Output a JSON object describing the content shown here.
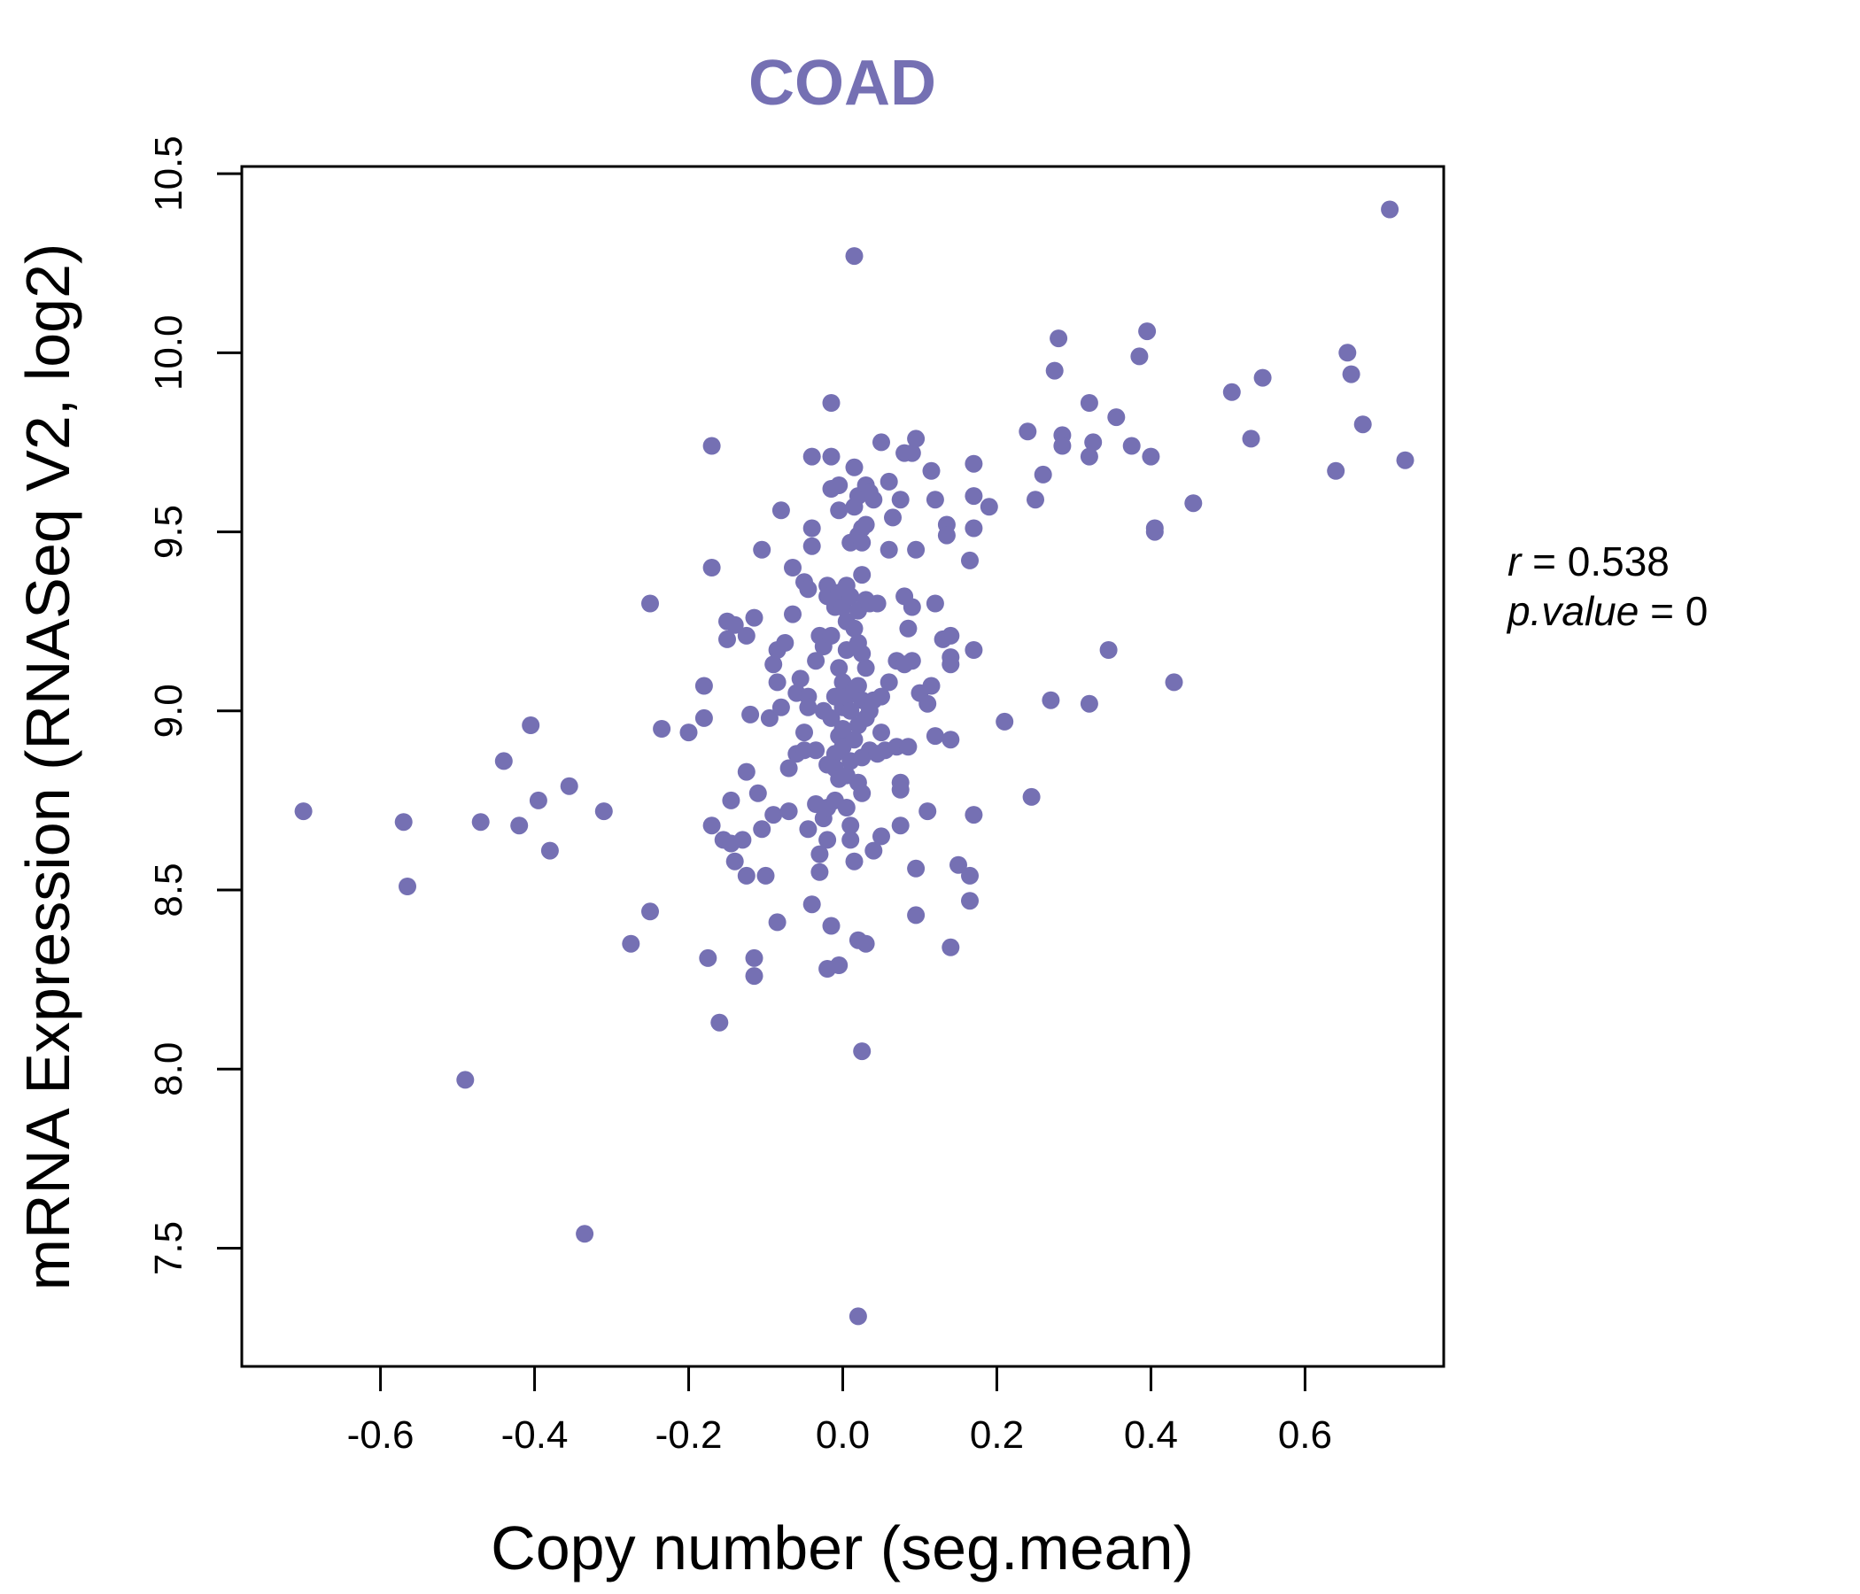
{
  "chart_data": {
    "type": "scatter",
    "title": "COAD",
    "xlabel": "Copy number (seg.mean)",
    "ylabel": "mRNA Expression (RNASeq V2, log2)",
    "xlim": [
      -0.78,
      0.78
    ],
    "ylim": [
      7.17,
      10.52
    ],
    "xticks": [
      -0.6,
      -0.4,
      -0.2,
      0.0,
      0.2,
      0.4,
      0.6
    ],
    "xtick_labels": [
      "-0.6",
      "-0.4",
      "-0.2",
      "0.0",
      "0.2",
      "0.4",
      "0.6"
    ],
    "yticks": [
      7.5,
      8.0,
      8.5,
      9.0,
      9.5,
      10.0,
      10.5
    ],
    "ytick_labels": [
      "7.5",
      "8.0",
      "8.5",
      "9.0",
      "9.5",
      "10.0",
      "10.5"
    ],
    "grid": false,
    "point_color": "#7570B3",
    "title_color": "#7570B3",
    "annotation": {
      "r_symbol": "r",
      "r_value": "0.538",
      "p_symbol": "p.value",
      "p_value": "0"
    },
    "points": [
      [
        -0.7,
        8.72
      ],
      [
        -0.57,
        8.69
      ],
      [
        -0.565,
        8.51
      ],
      [
        -0.49,
        7.97
      ],
      [
        -0.47,
        8.69
      ],
      [
        -0.44,
        8.86
      ],
      [
        -0.42,
        8.68
      ],
      [
        -0.405,
        8.96
      ],
      [
        -0.395,
        8.75
      ],
      [
        -0.38,
        8.61
      ],
      [
        -0.355,
        8.79
      ],
      [
        -0.335,
        7.54
      ],
      [
        -0.31,
        8.72
      ],
      [
        -0.275,
        8.35
      ],
      [
        -0.25,
        9.3
      ],
      [
        -0.25,
        8.44
      ],
      [
        -0.235,
        8.95
      ],
      [
        -0.2,
        8.94
      ],
      [
        -0.18,
        9.07
      ],
      [
        -0.18,
        8.98
      ],
      [
        -0.175,
        8.31
      ],
      [
        -0.17,
        9.74
      ],
      [
        -0.17,
        9.4
      ],
      [
        -0.17,
        8.68
      ],
      [
        -0.16,
        8.13
      ],
      [
        -0.155,
        8.64
      ],
      [
        -0.15,
        9.25
      ],
      [
        -0.15,
        9.2
      ],
      [
        -0.145,
        8.75
      ],
      [
        -0.145,
        8.63
      ],
      [
        -0.14,
        8.58
      ],
      [
        -0.14,
        9.24
      ],
      [
        -0.13,
        8.64
      ],
      [
        -0.125,
        9.21
      ],
      [
        -0.125,
        8.54
      ],
      [
        -0.125,
        8.83
      ],
      [
        -0.12,
        8.99
      ],
      [
        -0.115,
        9.26
      ],
      [
        -0.115,
        8.31
      ],
      [
        -0.115,
        8.26
      ],
      [
        -0.11,
        8.77
      ],
      [
        -0.105,
        9.45
      ],
      [
        -0.105,
        8.67
      ],
      [
        -0.1,
        8.54
      ],
      [
        -0.095,
        8.98
      ],
      [
        -0.09,
        9.13
      ],
      [
        -0.09,
        8.71
      ],
      [
        -0.085,
        9.08
      ],
      [
        -0.085,
        8.41
      ],
      [
        -0.085,
        9.17
      ],
      [
        -0.08,
        9.56
      ],
      [
        -0.08,
        9.01
      ],
      [
        -0.075,
        9.19
      ],
      [
        -0.07,
        8.72
      ],
      [
        -0.07,
        8.84
      ],
      [
        -0.065,
        9.27
      ],
      [
        -0.065,
        9.4
      ],
      [
        -0.06,
        9.05
      ],
      [
        -0.06,
        8.88
      ],
      [
        -0.055,
        9.09
      ],
      [
        -0.05,
        9.36
      ],
      [
        -0.05,
        8.94
      ],
      [
        -0.05,
        8.89
      ],
      [
        -0.045,
        9.04
      ],
      [
        -0.045,
        9.01
      ],
      [
        -0.045,
        9.34
      ],
      [
        -0.045,
        8.67
      ],
      [
        -0.04,
        9.51
      ],
      [
        -0.04,
        9.71
      ],
      [
        -0.04,
        8.46
      ],
      [
        -0.04,
        9.46
      ],
      [
        -0.035,
        8.89
      ],
      [
        -0.035,
        8.74
      ],
      [
        -0.035,
        9.14
      ],
      [
        -0.03,
        9.21
      ],
      [
        -0.03,
        8.6
      ],
      [
        -0.03,
        8.55
      ],
      [
        -0.025,
        9.0
      ],
      [
        -0.025,
        8.7
      ],
      [
        -0.025,
        9.18
      ],
      [
        -0.02,
        8.28
      ],
      [
        -0.02,
        8.73
      ],
      [
        -0.02,
        9.35
      ],
      [
        -0.02,
        9.32
      ],
      [
        -0.02,
        8.85
      ],
      [
        -0.02,
        8.64
      ],
      [
        -0.015,
        9.71
      ],
      [
        -0.015,
        9.62
      ],
      [
        -0.015,
        9.86
      ],
      [
        -0.015,
        8.4
      ],
      [
        -0.015,
        9.21
      ],
      [
        -0.015,
        8.98
      ],
      [
        -0.01,
        9.29
      ],
      [
        -0.01,
        9.04
      ],
      [
        -0.01,
        8.75
      ],
      [
        -0.01,
        8.88
      ],
      [
        -0.01,
        8.84
      ],
      [
        -0.005,
        9.63
      ],
      [
        -0.005,
        9.56
      ],
      [
        -0.005,
        9.33
      ],
      [
        -0.005,
        8.29
      ],
      [
        -0.005,
        9.12
      ],
      [
        -0.005,
        8.93
      ],
      [
        -0.005,
        8.81
      ],
      [
        0.0,
        9.29
      ],
      [
        0.0,
        9.08
      ],
      [
        0.0,
        9.01
      ],
      [
        0.0,
        8.95
      ],
      [
        0.0,
        8.9
      ],
      [
        0.005,
        9.35
      ],
      [
        0.005,
        9.25
      ],
      [
        0.005,
        9.17
      ],
      [
        0.005,
        9.04
      ],
      [
        0.005,
        8.82
      ],
      [
        0.005,
        8.73
      ],
      [
        0.01,
        9.47
      ],
      [
        0.01,
        9.32
      ],
      [
        0.01,
        9.0
      ],
      [
        0.01,
        8.86
      ],
      [
        0.01,
        8.64
      ],
      [
        0.01,
        8.68
      ],
      [
        0.015,
        9.68
      ],
      [
        0.015,
        9.57
      ],
      [
        0.015,
        9.23
      ],
      [
        0.015,
        9.06
      ],
      [
        0.015,
        8.92
      ],
      [
        0.015,
        8.58
      ],
      [
        0.015,
        10.27
      ],
      [
        0.02,
        9.6
      ],
      [
        0.02,
        9.49
      ],
      [
        0.02,
        9.28
      ],
      [
        0.02,
        9.19
      ],
      [
        0.02,
        9.07
      ],
      [
        0.02,
        8.96
      ],
      [
        0.02,
        8.8
      ],
      [
        0.02,
        8.36
      ],
      [
        0.02,
        7.31
      ],
      [
        0.025,
        9.51
      ],
      [
        0.025,
        9.47
      ],
      [
        0.025,
        9.38
      ],
      [
        0.025,
        9.16
      ],
      [
        0.025,
        9.03
      ],
      [
        0.025,
        8.87
      ],
      [
        0.025,
        8.77
      ],
      [
        0.025,
        8.05
      ],
      [
        0.03,
        9.63
      ],
      [
        0.03,
        9.52
      ],
      [
        0.03,
        9.31
      ],
      [
        0.03,
        9.12
      ],
      [
        0.03,
        8.98
      ],
      [
        0.03,
        8.35
      ],
      [
        0.035,
        9.61
      ],
      [
        0.035,
        9.3
      ],
      [
        0.035,
        9.0
      ],
      [
        0.035,
        8.89
      ],
      [
        0.04,
        9.59
      ],
      [
        0.04,
        9.03
      ],
      [
        0.04,
        8.61
      ],
      [
        0.045,
        9.3
      ],
      [
        0.045,
        8.88
      ],
      [
        0.05,
        9.75
      ],
      [
        0.05,
        9.04
      ],
      [
        0.05,
        8.94
      ],
      [
        0.05,
        8.65
      ],
      [
        0.055,
        8.89
      ],
      [
        0.06,
        9.64
      ],
      [
        0.06,
        9.45
      ],
      [
        0.06,
        9.08
      ],
      [
        0.065,
        9.54
      ],
      [
        0.07,
        9.14
      ],
      [
        0.07,
        8.9
      ],
      [
        0.075,
        9.59
      ],
      [
        0.075,
        8.8
      ],
      [
        0.075,
        8.78
      ],
      [
        0.075,
        8.68
      ],
      [
        0.08,
        9.72
      ],
      [
        0.08,
        9.32
      ],
      [
        0.08,
        9.13
      ],
      [
        0.085,
        9.23
      ],
      [
        0.085,
        8.9
      ],
      [
        0.09,
        9.72
      ],
      [
        0.09,
        9.29
      ],
      [
        0.09,
        9.14
      ],
      [
        0.095,
        9.76
      ],
      [
        0.095,
        9.45
      ],
      [
        0.095,
        8.56
      ],
      [
        0.095,
        8.43
      ],
      [
        0.1,
        9.05
      ],
      [
        0.11,
        9.02
      ],
      [
        0.11,
        8.72
      ],
      [
        0.115,
        9.67
      ],
      [
        0.115,
        9.07
      ],
      [
        0.12,
        9.59
      ],
      [
        0.12,
        9.3
      ],
      [
        0.12,
        8.93
      ],
      [
        0.13,
        9.2
      ],
      [
        0.135,
        9.52
      ],
      [
        0.135,
        9.49
      ],
      [
        0.14,
        9.21
      ],
      [
        0.14,
        9.15
      ],
      [
        0.14,
        9.13
      ],
      [
        0.14,
        8.92
      ],
      [
        0.14,
        8.34
      ],
      [
        0.15,
        8.57
      ],
      [
        0.165,
        9.42
      ],
      [
        0.165,
        8.54
      ],
      [
        0.165,
        8.47
      ],
      [
        0.17,
        9.69
      ],
      [
        0.17,
        9.6
      ],
      [
        0.17,
        9.51
      ],
      [
        0.17,
        9.17
      ],
      [
        0.17,
        8.71
      ],
      [
        0.19,
        9.57
      ],
      [
        0.21,
        8.97
      ],
      [
        0.24,
        9.78
      ],
      [
        0.245,
        8.76
      ],
      [
        0.25,
        9.59
      ],
      [
        0.26,
        9.66
      ],
      [
        0.27,
        9.03
      ],
      [
        0.275,
        9.95
      ],
      [
        0.28,
        10.04
      ],
      [
        0.285,
        9.77
      ],
      [
        0.285,
        9.74
      ],
      [
        0.32,
        9.71
      ],
      [
        0.32,
        9.02
      ],
      [
        0.32,
        9.86
      ],
      [
        0.325,
        9.75
      ],
      [
        0.345,
        9.17
      ],
      [
        0.355,
        9.82
      ],
      [
        0.375,
        9.74
      ],
      [
        0.385,
        9.99
      ],
      [
        0.395,
        10.06
      ],
      [
        0.4,
        9.71
      ],
      [
        0.405,
        9.51
      ],
      [
        0.405,
        9.5
      ],
      [
        0.43,
        9.08
      ],
      [
        0.455,
        9.58
      ],
      [
        0.505,
        9.89
      ],
      [
        0.53,
        9.76
      ],
      [
        0.545,
        9.93
      ],
      [
        0.64,
        9.67
      ],
      [
        0.655,
        10.0
      ],
      [
        0.66,
        9.94
      ],
      [
        0.675,
        9.8
      ],
      [
        0.71,
        10.4
      ],
      [
        0.73,
        9.7
      ]
    ]
  }
}
